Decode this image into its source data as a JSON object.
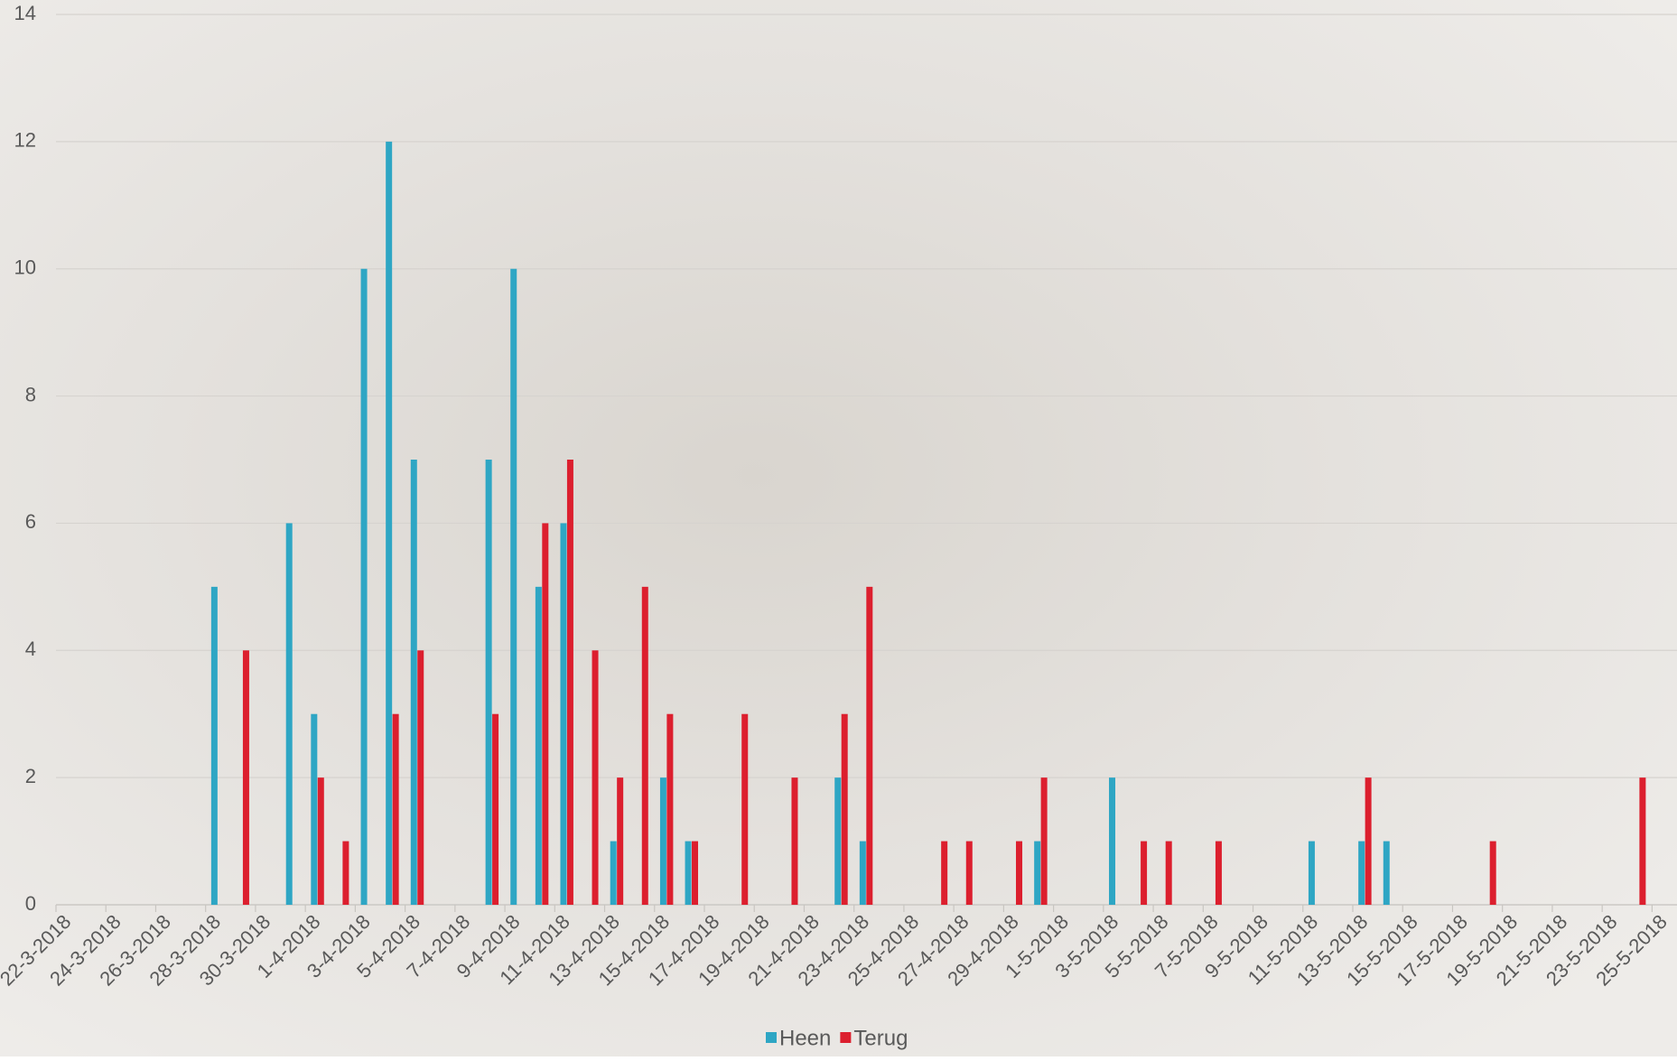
{
  "chart_data": {
    "type": "bar",
    "categories": [
      "22-3-2018",
      null,
      "24-3-2018",
      null,
      "26-3-2018",
      null,
      "28-3-2018",
      null,
      "30-3-2018",
      null,
      "1-4-2018",
      null,
      "3-4-2018",
      null,
      "5-4-2018",
      null,
      "7-4-2018",
      null,
      "9-4-2018",
      null,
      "11-4-2018",
      null,
      "13-4-2018",
      null,
      "15-4-2018",
      null,
      "17-4-2018",
      null,
      "19-4-2018",
      null,
      "21-4-2018",
      null,
      "23-4-2018",
      null,
      "25-4-2018",
      null,
      "27-4-2018",
      null,
      "29-4-2018",
      null,
      "1-5-2018",
      null,
      "3-5-2018",
      null,
      "5-5-2018",
      null,
      "7-5-2018",
      null,
      "9-5-2018",
      null,
      "11-5-2018",
      null,
      "13-5-2018",
      null,
      "15-5-2018",
      null,
      "17-5-2018",
      null,
      "19-5-2018",
      null,
      "21-5-2018",
      null,
      "23-5-2018",
      null,
      "25-5-2018"
    ],
    "series": [
      {
        "name": "Heen",
        "color": "#2ea6c4",
        "values": [
          0,
          0,
          0,
          0,
          0,
          0,
          5,
          0,
          0,
          6,
          3,
          0,
          10,
          12,
          7,
          0,
          0,
          7,
          10,
          5,
          6,
          0,
          1,
          0,
          2,
          1,
          0,
          0,
          0,
          0,
          0,
          2,
          1,
          0,
          0,
          0,
          0,
          0,
          0,
          1,
          0,
          0,
          2,
          0,
          0,
          0,
          0,
          0,
          0,
          0,
          1,
          0,
          1,
          1,
          0,
          0,
          0,
          0,
          0,
          0,
          0,
          0,
          0,
          0,
          0
        ]
      },
      {
        "name": "Terug",
        "color": "#dc1f2e",
        "values": [
          0,
          0,
          0,
          0,
          0,
          0,
          0,
          4,
          0,
          0,
          2,
          1,
          0,
          3,
          4,
          0,
          0,
          3,
          0,
          6,
          7,
          4,
          2,
          5,
          3,
          1,
          0,
          3,
          0,
          2,
          0,
          3,
          5,
          0,
          0,
          1,
          1,
          0,
          1,
          2,
          0,
          0,
          0,
          1,
          1,
          0,
          1,
          0,
          0,
          0,
          0,
          0,
          2,
          0,
          0,
          0,
          0,
          1,
          0,
          0,
          0,
          0,
          0,
          2,
          0
        ]
      }
    ],
    "ylim": [
      0,
      14
    ],
    "yticks": [
      0,
      2,
      4,
      6,
      8,
      10,
      12,
      14
    ],
    "grid": true,
    "legend": "bottom"
  }
}
